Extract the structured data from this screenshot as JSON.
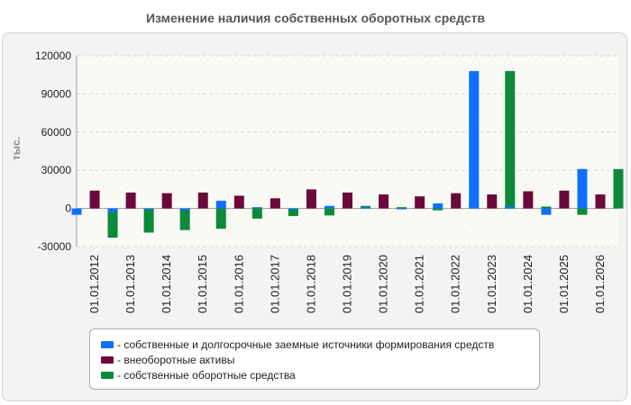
{
  "chart_data": {
    "type": "bar",
    "title": "Изменение наличия собственных оборотных средств",
    "ylabel": "тыс.",
    "xlabel": "",
    "ylim": [
      -30000,
      120000
    ],
    "yticks": [
      -30000,
      0,
      30000,
      60000,
      90000,
      120000
    ],
    "grid": true,
    "legend_position": "bottom",
    "categories": [
      "01.01.2012",
      "01.01.2013",
      "01.01.2014",
      "01.01.2015",
      "01.01.2016",
      "01.01.2017",
      "01.01.2018",
      "01.01.2019",
      "01.01.2020",
      "01.01.2021",
      "01.01.2022",
      "01.01.2023",
      "01.01.2024",
      "01.01.2025",
      "01.01.2026"
    ],
    "series": [
      {
        "name": "собственные и долгосрочные заемные источники формирования средств",
        "color": "#0f6fff",
        "values": [
          -5000,
          -3000,
          -1000,
          -1500,
          6000,
          1000,
          -1000,
          2000,
          1000,
          -500,
          4000,
          108000,
          1500,
          -5000,
          31000
        ]
      },
      {
        "name": "внеоборотные активы",
        "color": "#6b0a3a",
        "values": [
          14000,
          12500,
          12000,
          12500,
          10000,
          8000,
          15000,
          12500,
          11000,
          9500,
          12000,
          11000,
          13500,
          14000,
          11000
        ]
      },
      {
        "name": "собственные оборотные средства",
        "color": "#0b8a3a",
        "values": [
          -23000,
          -19000,
          -17000,
          -16000,
          -8000,
          -6000,
          -5500,
          2000,
          1000,
          -1500,
          4000,
          108000,
          1500,
          -5000,
          31000
        ]
      }
    ]
  }
}
